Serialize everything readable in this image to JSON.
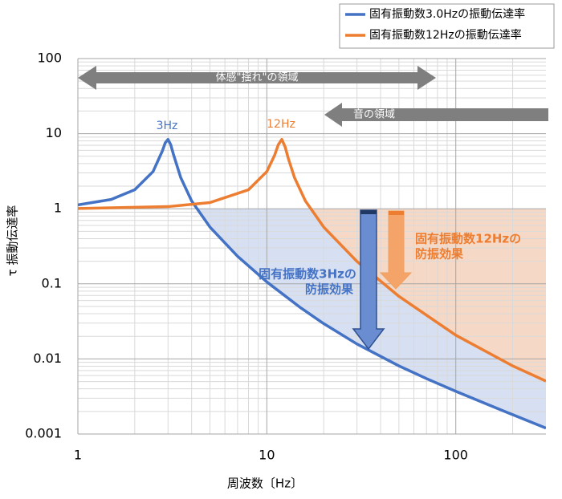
{
  "chart_data": {
    "type": "line",
    "xlabel": "周波数〔Hz〕",
    "ylabel": "τ 振動伝達率",
    "log_x": true,
    "log_y": true,
    "grid": "minor",
    "legend": "top-right",
    "xlim": [
      1,
      300
    ],
    "ylim": [
      0.001,
      100
    ],
    "xticks": [
      1,
      10,
      100
    ],
    "yticks": [
      0.001,
      0.01,
      0.1,
      1,
      10,
      100
    ],
    "series": [
      {
        "name": "固有振動数3.0Hzの振動伝達率",
        "color": "#4472c4",
        "fill": "rgba(68,114,196,0.22)",
        "x": [
          1,
          1.5,
          2,
          2.5,
          2.8,
          2.9,
          3,
          3.1,
          3.2,
          3.5,
          4,
          5,
          7,
          10,
          15,
          20,
          30,
          50,
          70,
          100,
          150,
          200,
          300
        ],
        "values": [
          1.125,
          1.33,
          1.79,
          3.13,
          5.89,
          7.55,
          8.39,
          7.13,
          5.36,
          2.61,
          1.27,
          0.57,
          0.233,
          0.106,
          0.0486,
          0.0295,
          0.0158,
          0.00808,
          0.00547,
          0.00371,
          0.00243,
          0.00181,
          0.0012
        ]
      },
      {
        "name": "固有振動数12Hzの振動伝達率",
        "color": "#ed7d31",
        "fill": "rgba(250,215,190,0.85)",
        "x": [
          1,
          3,
          5,
          8,
          10,
          11,
          11.5,
          12,
          12.5,
          13,
          14,
          16,
          20,
          30,
          50,
          100,
          200,
          300
        ],
        "values": [
          1.007,
          1.067,
          1.209,
          1.79,
          3.13,
          5.18,
          7.14,
          8.39,
          6.66,
          4.65,
          2.61,
          1.27,
          0.57,
          0.1986,
          0.0682,
          0.0207,
          0.00808,
          0.00507
        ]
      }
    ],
    "annotations": [
      "体感\"揺れ\"の領域",
      "音の領域",
      "3Hz",
      "12Hz",
      "固有振動数3Hzの",
      "防振効果",
      "固有振動数12Hzの",
      "防振効果"
    ]
  }
}
